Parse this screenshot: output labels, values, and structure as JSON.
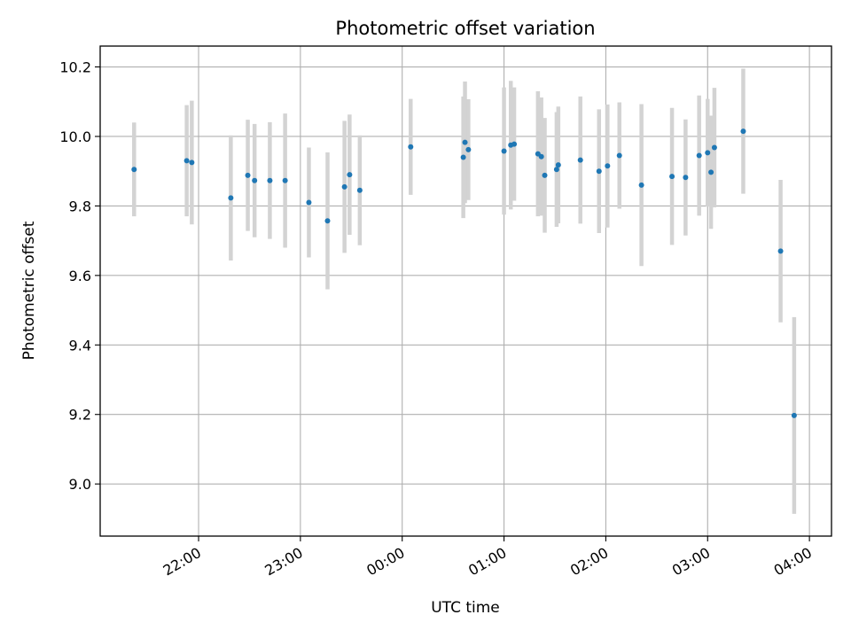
{
  "chart_data": {
    "type": "scatter",
    "title": "Photometric offset variation",
    "xlabel": "UTC time",
    "ylabel": "Photometric offset",
    "x_ticks": [
      "22:00",
      "23:00",
      "00:00",
      "01:00",
      "02:00",
      "03:00",
      "04:00"
    ],
    "y_ticks": [
      "9.0",
      "9.2",
      "9.4",
      "9.6",
      "9.8",
      "10.0",
      "10.2"
    ],
    "xlim": [
      "21:02",
      "04:13"
    ],
    "ylim": [
      8.85,
      10.26
    ],
    "grid": true,
    "colors": {
      "points": "#1f77b4",
      "errorbars": "#d3d3d3",
      "grid": "#b0b0b0"
    },
    "points": [
      {
        "x": "21:22",
        "y": 9.905,
        "err": 0.135
      },
      {
        "x": "21:53",
        "y": 9.93,
        "err": 0.16
      },
      {
        "x": "21:56",
        "y": 9.925,
        "err": 0.178
      },
      {
        "x": "22:19",
        "y": 9.823,
        "err": 0.18
      },
      {
        "x": "22:29",
        "y": 9.888,
        "err": 0.16
      },
      {
        "x": "22:33",
        "y": 9.873,
        "err": 0.163
      },
      {
        "x": "22:42",
        "y": 9.873,
        "err": 0.168
      },
      {
        "x": "22:51",
        "y": 9.873,
        "err": 0.193
      },
      {
        "x": "23:05",
        "y": 9.81,
        "err": 0.158
      },
      {
        "x": "23:16",
        "y": 9.757,
        "err": 0.197
      },
      {
        "x": "23:26",
        "y": 9.855,
        "err": 0.19
      },
      {
        "x": "23:29",
        "y": 9.89,
        "err": 0.173
      },
      {
        "x": "23:35",
        "y": 9.845,
        "err": 0.158
      },
      {
        "x": "00:05",
        "y": 9.97,
        "err": 0.138
      },
      {
        "x": "00:36",
        "y": 9.94,
        "err": 0.175
      },
      {
        "x": "00:37",
        "y": 9.983,
        "err": 0.175
      },
      {
        "x": "00:39",
        "y": 9.962,
        "err": 0.145
      },
      {
        "x": "01:00",
        "y": 9.958,
        "err": 0.183
      },
      {
        "x": "01:04",
        "y": 9.975,
        "err": 0.185
      },
      {
        "x": "01:06",
        "y": 9.978,
        "err": 0.163
      },
      {
        "x": "01:20",
        "y": 9.95,
        "err": 0.18
      },
      {
        "x": "01:22",
        "y": 9.942,
        "err": 0.17
      },
      {
        "x": "01:24",
        "y": 9.888,
        "err": 0.165
      },
      {
        "x": "01:31",
        "y": 9.905,
        "err": 0.165
      },
      {
        "x": "01:32",
        "y": 9.918,
        "err": 0.168
      },
      {
        "x": "01:45",
        "y": 9.932,
        "err": 0.183
      },
      {
        "x": "01:56",
        "y": 9.9,
        "err": 0.178
      },
      {
        "x": "02:01",
        "y": 9.915,
        "err": 0.177
      },
      {
        "x": "02:08",
        "y": 9.945,
        "err": 0.153
      },
      {
        "x": "02:21",
        "y": 9.86,
        "err": 0.233
      },
      {
        "x": "02:39",
        "y": 9.885,
        "err": 0.197
      },
      {
        "x": "02:47",
        "y": 9.882,
        "err": 0.167
      },
      {
        "x": "02:55",
        "y": 9.945,
        "err": 0.173
      },
      {
        "x": "03:00",
        "y": 9.953,
        "err": 0.155
      },
      {
        "x": "03:02",
        "y": 9.897,
        "err": 0.163
      },
      {
        "x": "03:04",
        "y": 9.968,
        "err": 0.172
      },
      {
        "x": "03:21",
        "y": 10.015,
        "err": 0.18
      },
      {
        "x": "03:43",
        "y": 9.67,
        "err": 0.205
      },
      {
        "x": "03:51",
        "y": 9.197,
        "err": 0.283
      }
    ]
  }
}
